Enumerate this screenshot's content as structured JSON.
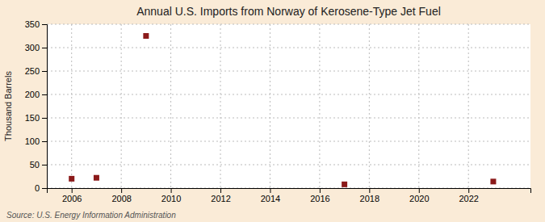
{
  "chart_data": {
    "type": "scatter",
    "title": "Annual U.S. Imports from Norway of Kerosene-Type Jet Fuel",
    "ylabel": "Thousand Barrels",
    "source": "Source: U.S. Energy Information Administration",
    "x": [
      2006,
      2007,
      2009,
      2017,
      2023
    ],
    "values": [
      20,
      22,
      325,
      8,
      14
    ],
    "color": "#8b1a1a",
    "marker": "square",
    "xlim": [
      2005.0,
      2024.5
    ],
    "ylim": [
      0,
      350
    ],
    "xticks": [
      2006,
      2008,
      2010,
      2012,
      2014,
      2016,
      2018,
      2020,
      2022
    ],
    "yticks": [
      0,
      50,
      100,
      150,
      200,
      250,
      300,
      350
    ],
    "grid": true
  }
}
